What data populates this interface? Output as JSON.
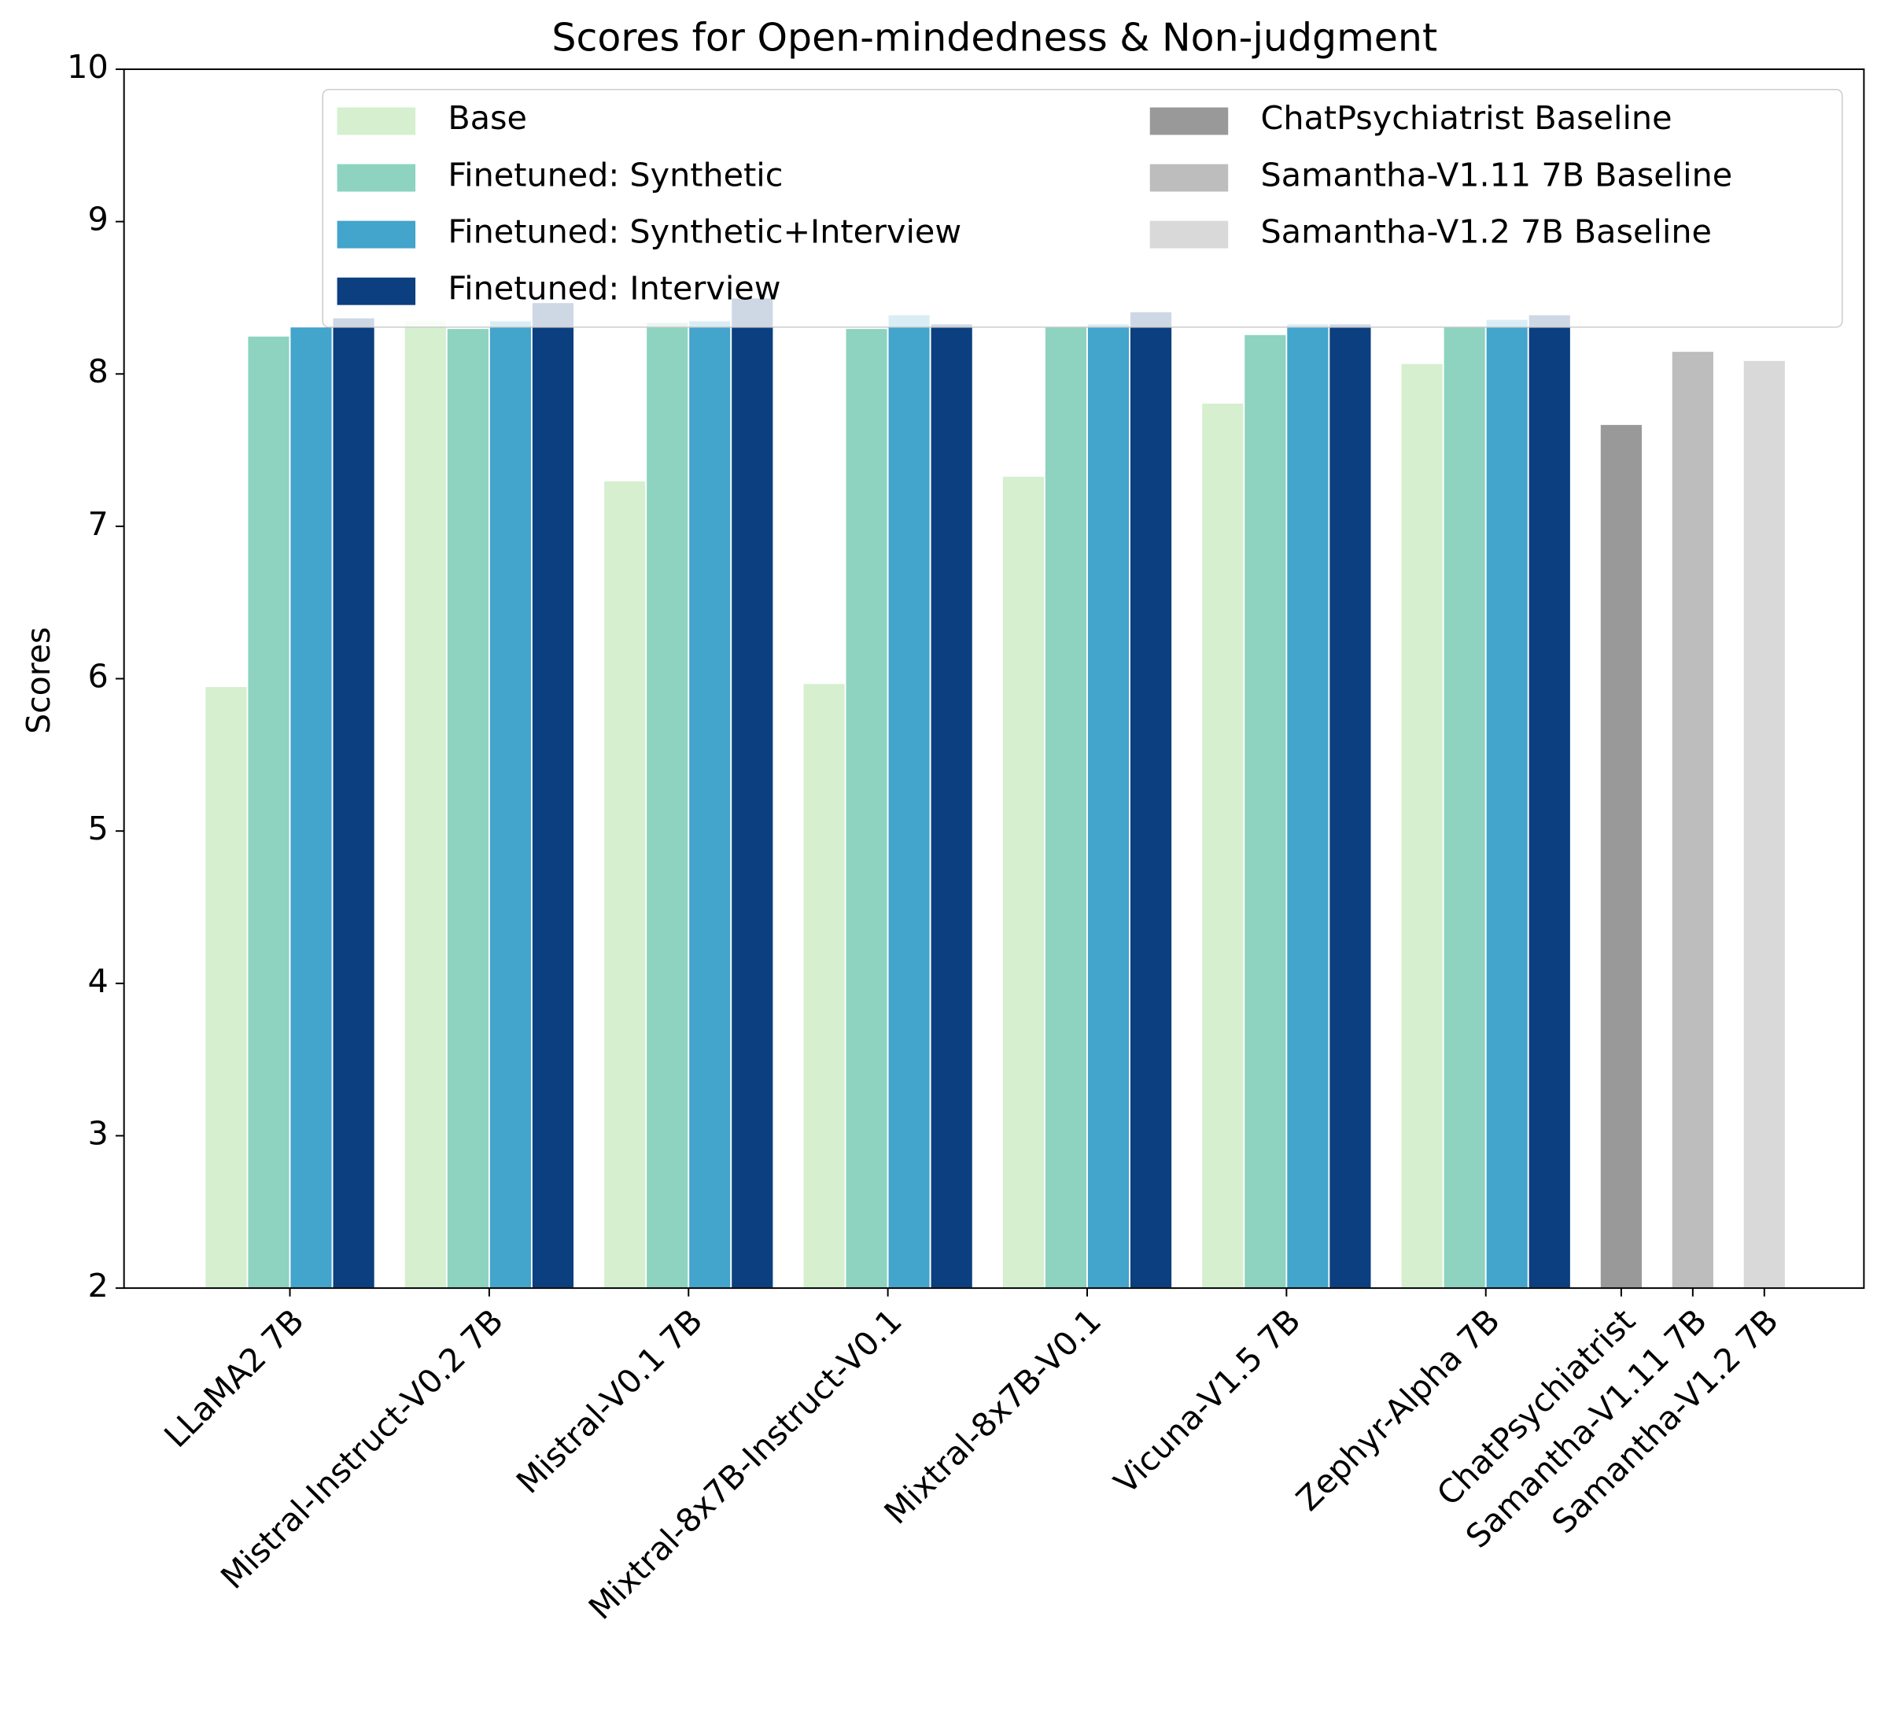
{
  "chart_data": {
    "type": "bar",
    "title": "Scores for Open-mindedness & Non-judgment",
    "y_label": "Scores",
    "categories": [
      "LLaMA2 7B",
      "Mistral-Instruct-V0.2 7B",
      "Mistral-V0.1 7B",
      "Mixtral-8x7B-Instruct-V0.1",
      "Mixtral-8x7B-V0.1",
      "Vicuna-V1.5 7B",
      "Zephyr-Alpha 7B",
      "ChatPsychiatrist",
      "Samantha-V1.11 7B",
      "Samantha-V1.2 7B"
    ],
    "series": [
      {
        "name": "Base",
        "color": "#d5efcf",
        "values": [
          5.95,
          8.35,
          7.3,
          5.97,
          7.33,
          7.81,
          8.07,
          null,
          null,
          null
        ]
      },
      {
        "name": "Finetuned: Synthetic",
        "color": "#8dd3bf",
        "values": [
          8.25,
          8.3,
          8.34,
          8.3,
          8.31,
          8.26,
          8.31,
          null,
          null,
          null
        ]
      },
      {
        "name": "Finetuned: Synthetic+Interview",
        "color": "#43a4cc",
        "values": [
          8.31,
          8.35,
          8.35,
          8.39,
          8.33,
          8.33,
          8.36,
          null,
          null,
          null
        ]
      },
      {
        "name": "Finetuned: Interview",
        "color": "#0b3f7f",
        "values": [
          8.37,
          8.47,
          8.5,
          8.33,
          8.41,
          8.33,
          8.39,
          null,
          null,
          null
        ]
      },
      {
        "name": "ChatPsychiatrist Baseline",
        "color": "#999999",
        "values": [
          null,
          null,
          null,
          null,
          null,
          null,
          null,
          7.67,
          null,
          null
        ]
      },
      {
        "name": "Samantha-V1.11 7B Baseline",
        "color": "#bdbdbd",
        "values": [
          null,
          null,
          null,
          null,
          null,
          null,
          null,
          null,
          8.15,
          null
        ]
      },
      {
        "name": "Samantha-V1.2 7B Baseline",
        "color": "#d9d9d9",
        "values": [
          null,
          null,
          null,
          null,
          null,
          null,
          null,
          null,
          null,
          8.09
        ]
      }
    ],
    "ylim": [
      2,
      10
    ],
    "yticks": [
      2,
      3,
      4,
      5,
      6,
      7,
      8,
      9,
      10
    ],
    "legend": "upper right",
    "legend_columns": 2
  }
}
